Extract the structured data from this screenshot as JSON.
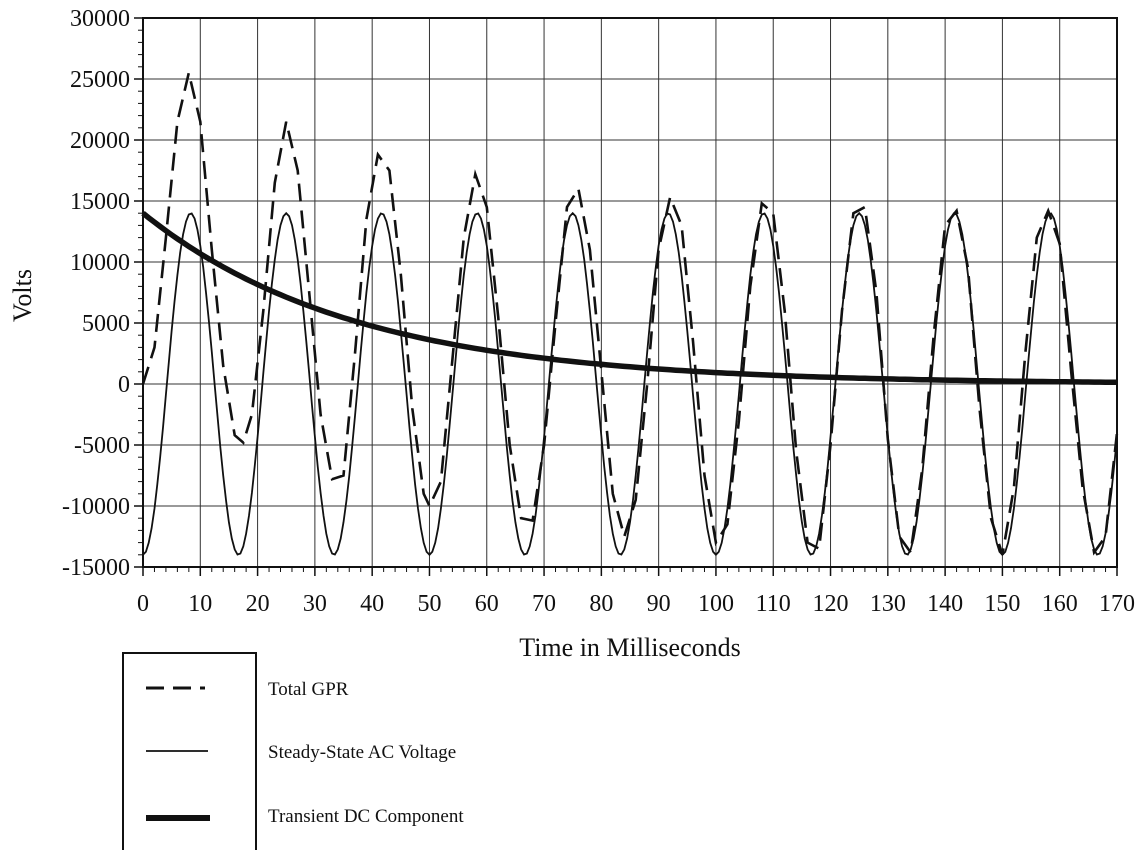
{
  "chart_data": {
    "type": "line",
    "title": "",
    "xlabel": "Time in Milliseconds",
    "ylabel": "Volts",
    "xlim": [
      0,
      170
    ],
    "ylim": [
      -15000,
      30000
    ],
    "grid": true,
    "x_ticks": [
      0,
      10,
      20,
      30,
      40,
      50,
      60,
      70,
      80,
      90,
      100,
      110,
      120,
      130,
      140,
      150,
      160,
      170
    ],
    "y_ticks": [
      -15000,
      -10000,
      -5000,
      0,
      5000,
      10000,
      15000,
      20000,
      25000,
      30000
    ],
    "legend": {
      "position": "bottom-left",
      "entries": [
        "Total GPR",
        "Steady-State AC Voltage",
        "Transient DC Component"
      ]
    },
    "series": [
      {
        "name": "Total GPR",
        "style": "dashed",
        "x": [
          0,
          2,
          4,
          6,
          8,
          10,
          12,
          14,
          16,
          17.5,
          19,
          21,
          23,
          25,
          27,
          29,
          31,
          33,
          35,
          37,
          39,
          41,
          43,
          45,
          47,
          49,
          50,
          52,
          54,
          56,
          58,
          60,
          62,
          64,
          66,
          68,
          70,
          72,
          74,
          76,
          78,
          80,
          82,
          84,
          86,
          88,
          90,
          92,
          94,
          96,
          98,
          100,
          102,
          104,
          106,
          108,
          110,
          112,
          114,
          116,
          118,
          120,
          122,
          124,
          126,
          128,
          130,
          132,
          134,
          136,
          138,
          140,
          142,
          144,
          146,
          148,
          150,
          152,
          154,
          156,
          158,
          160,
          162,
          164,
          166,
          168,
          170
        ],
        "y": [
          0,
          3000,
          12000,
          21500,
          25500,
          21500,
          11000,
          1500,
          -4200,
          -4800,
          -2500,
          6000,
          16500,
          21500,
          17500,
          7500,
          -2500,
          -7800,
          -7500,
          2500,
          13500,
          18800,
          17500,
          9000,
          -2000,
          -9000,
          -10000,
          -8000,
          2000,
          12000,
          17200,
          14500,
          5500,
          -5000,
          -11000,
          -11200,
          -5000,
          5000,
          14500,
          16000,
          11000,
          1000,
          -9000,
          -12500,
          -9500,
          0,
          11000,
          15300,
          13000,
          3500,
          -7500,
          -13000,
          -11500,
          -3000,
          8000,
          14800,
          14000,
          6000,
          -5500,
          -13000,
          -13500,
          -5000,
          6000,
          14000,
          14500,
          7500,
          -4500,
          -12500,
          -13800,
          -7000,
          4000,
          13000,
          14200,
          9500,
          -2000,
          -11000,
          -14000,
          -8500,
          2500,
          12000,
          14200,
          11500,
          1000,
          -8500,
          -13800,
          -12500,
          -4000
        ]
      },
      {
        "name": "Steady-State AC Voltage",
        "style": "thin",
        "amplitude": 14000,
        "frequency_hz": 60
      },
      {
        "name": "Transient DC Component",
        "style": "thick",
        "initial": 14000,
        "time_constant_ms": 37
      }
    ]
  }
}
